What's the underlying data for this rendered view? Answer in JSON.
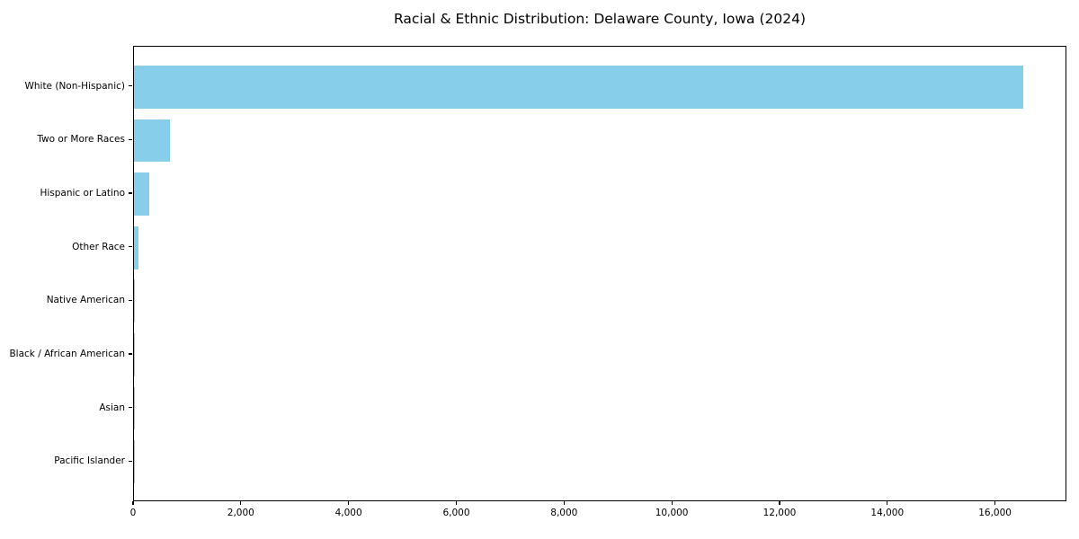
{
  "chart_data": {
    "type": "bar",
    "orientation": "horizontal",
    "title": "Racial & Ethnic Distribution: Delaware County, Iowa (2024)",
    "categories": [
      "White (Non-Hispanic)",
      "Two or More Races",
      "Hispanic or Latino",
      "Other Race",
      "Native American",
      "Black / African American",
      "Asian",
      "Pacific Islander"
    ],
    "values": [
      16500,
      660,
      290,
      85,
      25,
      8,
      6,
      2
    ],
    "xlabel": "",
    "ylabel": "",
    "xlim": [
      0,
      17325
    ],
    "x_ticks": [
      0,
      2000,
      4000,
      6000,
      8000,
      10000,
      12000,
      14000,
      16000
    ],
    "x_tick_labels": [
      "0",
      "2,000",
      "4,000",
      "6,000",
      "8,000",
      "10,000",
      "12,000",
      "14,000",
      "16,000"
    ],
    "bar_color": "#87CEEB",
    "axis_color": "#000000",
    "background_color": "#ffffff",
    "grid": false,
    "legend": null
  }
}
